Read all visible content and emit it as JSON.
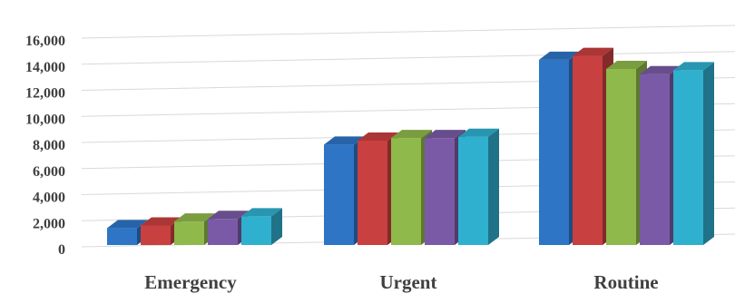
{
  "chart_data": {
    "type": "bar",
    "style": "3d-clustered-column",
    "categories": [
      "Emergency",
      "Urgent",
      "Routine"
    ],
    "series": [
      {
        "color": "#2e75c6",
        "values": [
          1300,
          7700,
          14200
        ]
      },
      {
        "color": "#c94040",
        "values": [
          1500,
          8000,
          14500
        ]
      },
      {
        "color": "#8fb94b",
        "values": [
          1800,
          8200,
          13500
        ]
      },
      {
        "color": "#7a5aa6",
        "values": [
          2000,
          8200,
          13100
        ]
      },
      {
        "color": "#2fb0cf",
        "values": [
          2200,
          8300,
          13400
        ]
      }
    ],
    "y_ticks": [
      "0",
      "2,000",
      "4,000",
      "6,000",
      "8,000",
      "10,000",
      "12,000",
      "14,000",
      "16,000"
    ],
    "y_tick_values": [
      0,
      2000,
      4000,
      6000,
      8000,
      10000,
      12000,
      14000,
      16000
    ],
    "ylim": [
      0,
      16000
    ],
    "grid": true,
    "legend": "none"
  }
}
